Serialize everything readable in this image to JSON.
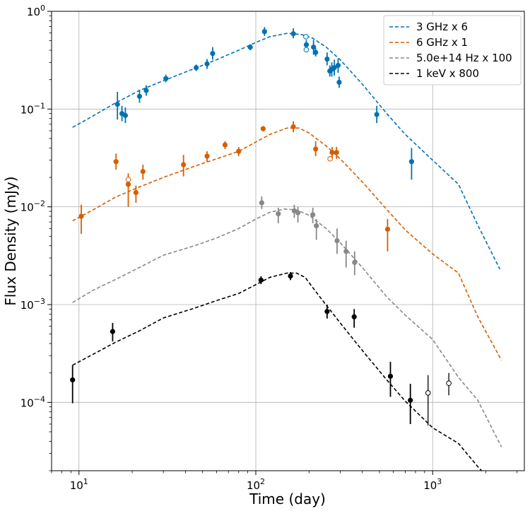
{
  "chart_data": {
    "type": "scatter",
    "xlabel": "Time (day)",
    "ylabel": "Flux Density (mJy)",
    "xscale": "log",
    "yscale": "log",
    "xlim": [
      7,
      3300
    ],
    "ylim": [
      2e-05,
      1
    ],
    "grid": true,
    "legend_position": "top-right",
    "x_ticks": [
      {
        "value": 10,
        "base": "10",
        "exp": "1"
      },
      {
        "value": 100,
        "base": "10",
        "exp": "2"
      },
      {
        "value": 1000,
        "base": "10",
        "exp": "3"
      }
    ],
    "y_ticks": [
      {
        "value": 0.0001,
        "base": "10",
        "exp": "−4"
      },
      {
        "value": 0.001,
        "base": "10",
        "exp": "−3"
      },
      {
        "value": 0.01,
        "base": "10",
        "exp": "−2"
      },
      {
        "value": 0.1,
        "base": "10",
        "exp": "−1"
      },
      {
        "value": 1,
        "base": "10",
        "exp": "0"
      }
    ],
    "series": [
      {
        "name": "3 GHz x 6",
        "color": "#0072b2",
        "model": [
          [
            9.2,
            0.065
          ],
          [
            12,
            0.085
          ],
          [
            16,
            0.115
          ],
          [
            22,
            0.155
          ],
          [
            30,
            0.195
          ],
          [
            45,
            0.26
          ],
          [
            60,
            0.32
          ],
          [
            80,
            0.4
          ],
          [
            100,
            0.48
          ],
          [
            120,
            0.55
          ],
          [
            150,
            0.595
          ],
          [
            180,
            0.58
          ],
          [
            210,
            0.53
          ],
          [
            250,
            0.43
          ],
          [
            300,
            0.32
          ],
          [
            400,
            0.18
          ],
          [
            550,
            0.09
          ],
          [
            700,
            0.055
          ],
          [
            1000,
            0.03
          ],
          [
            1400,
            0.017
          ],
          [
            1800,
            0.0065
          ],
          [
            2400,
            0.0023
          ]
        ],
        "points": [
          [
            16.5,
            0.112,
            0.15,
            0.078
          ],
          [
            17.5,
            0.09,
            0.108,
            0.075
          ],
          [
            18.3,
            0.086,
            0.104,
            0.072
          ],
          [
            22,
            0.135,
            0.158,
            0.116
          ],
          [
            24,
            0.155,
            0.175,
            0.137
          ],
          [
            31,
            0.205,
            0.225,
            0.188
          ],
          [
            46,
            0.265,
            0.285,
            0.245
          ],
          [
            53,
            0.29,
            0.325,
            0.258
          ],
          [
            57,
            0.37,
            0.43,
            0.32
          ],
          [
            93,
            0.43,
            0.46,
            0.4
          ],
          [
            112,
            0.62,
            0.69,
            0.56
          ],
          [
            163,
            0.59,
            0.67,
            0.53
          ],
          [
            193,
            0.455,
            0.51,
            0.405
          ],
          [
            212,
            0.43,
            0.51,
            0.36
          ],
          [
            218,
            0.38,
            0.42,
            0.345
          ],
          [
            253,
            0.325,
            0.38,
            0.28
          ],
          [
            262,
            0.245,
            0.28,
            0.215
          ],
          [
            269,
            0.255,
            0.3,
            0.215
          ],
          [
            278,
            0.265,
            0.32,
            0.22
          ],
          [
            292,
            0.28,
            0.33,
            0.235
          ],
          [
            296,
            0.188,
            0.215,
            0.165
          ],
          [
            483,
            0.088,
            0.108,
            0.072
          ],
          [
            760,
            0.029,
            0.04,
            0.019
          ]
        ],
        "open_points": [
          [
            192,
            0.55
          ],
          [
            193,
            0.405
          ]
        ]
      },
      {
        "name": "6 GHz x 1",
        "color": "#d55e00",
        "model": [
          [
            9.2,
            0.0072
          ],
          [
            12,
            0.0093
          ],
          [
            16,
            0.0125
          ],
          [
            22,
            0.016
          ],
          [
            30,
            0.02
          ],
          [
            45,
            0.026
          ],
          [
            60,
            0.031
          ],
          [
            80,
            0.037
          ],
          [
            100,
            0.046
          ],
          [
            120,
            0.055
          ],
          [
            150,
            0.064
          ],
          [
            175,
            0.064
          ],
          [
            200,
            0.057
          ],
          [
            250,
            0.042
          ],
          [
            300,
            0.031
          ],
          [
            400,
            0.018
          ],
          [
            550,
            0.0094
          ],
          [
            700,
            0.0058
          ],
          [
            1000,
            0.0033
          ],
          [
            1400,
            0.0021
          ],
          [
            1800,
            0.00075
          ],
          [
            2450,
            0.00027
          ]
        ],
        "points": [
          [
            10.3,
            0.008,
            0.0105,
            0.0053
          ],
          [
            16.2,
            0.029,
            0.035,
            0.024
          ],
          [
            19,
            0.017,
            0.022,
            0.01
          ],
          [
            21,
            0.014,
            0.0165,
            0.011
          ],
          [
            23,
            0.023,
            0.027,
            0.019
          ],
          [
            39,
            0.027,
            0.034,
            0.0205
          ],
          [
            53,
            0.033,
            0.037,
            0.029
          ],
          [
            67,
            0.043,
            0.047,
            0.039
          ],
          [
            80,
            0.037,
            0.041,
            0.033
          ],
          [
            110,
            0.063,
            0.067,
            0.059
          ],
          [
            163,
            0.066,
            0.075,
            0.058
          ],
          [
            218,
            0.039,
            0.047,
            0.033
          ],
          [
            270,
            0.036,
            0.041,
            0.031
          ],
          [
            286,
            0.036,
            0.041,
            0.031
          ],
          [
            556,
            0.0059,
            0.0075,
            0.0035
          ]
        ],
        "open_points": [
          [
            19,
            0.019
          ],
          [
            263,
            0.031
          ]
        ]
      },
      {
        "name": "5.0e+14 Hz x 100",
        "color": "#888888",
        "model": [
          [
            9.2,
            0.00105
          ],
          [
            12,
            0.0014
          ],
          [
            16,
            0.0018
          ],
          [
            22,
            0.0024
          ],
          [
            30,
            0.0032
          ],
          [
            45,
            0.004
          ],
          [
            60,
            0.0048
          ],
          [
            80,
            0.006
          ],
          [
            100,
            0.0075
          ],
          [
            120,
            0.0088
          ],
          [
            145,
            0.0095
          ],
          [
            170,
            0.0093
          ],
          [
            200,
            0.0082
          ],
          [
            250,
            0.006
          ],
          [
            300,
            0.0043
          ],
          [
            400,
            0.0024
          ],
          [
            550,
            0.0012
          ],
          [
            700,
            0.00078
          ],
          [
            1000,
            0.00044
          ],
          [
            1400,
            0.00018
          ],
          [
            1800,
            0.000105
          ],
          [
            2450,
            3.5e-05
          ]
        ],
        "points": [
          [
            108,
            0.011,
            0.0128,
            0.0095
          ],
          [
            134,
            0.0085,
            0.0098,
            0.0068
          ],
          [
            165,
            0.0091,
            0.0105,
            0.0077
          ],
          [
            173,
            0.0087,
            0.01,
            0.0069
          ],
          [
            210,
            0.0083,
            0.0098,
            0.0068
          ],
          [
            220,
            0.0064,
            0.0075,
            0.0046
          ],
          [
            288,
            0.0045,
            0.006,
            0.0033
          ],
          [
            324,
            0.0035,
            0.0045,
            0.0024
          ],
          [
            362,
            0.0027,
            0.0035,
            0.002
          ]
        ],
        "open_points": []
      },
      {
        "name": "1 keV x 800",
        "color": "#000000",
        "model": [
          [
            9.2,
            0.00024
          ],
          [
            12,
            0.00031
          ],
          [
            16,
            0.00041
          ],
          [
            22,
            0.00054
          ],
          [
            30,
            0.00073
          ],
          [
            45,
            0.00092
          ],
          [
            60,
            0.0011
          ],
          [
            80,
            0.0013
          ],
          [
            100,
            0.0016
          ],
          [
            120,
            0.0019
          ],
          [
            150,
            0.0021
          ],
          [
            170,
            0.0021
          ],
          [
            190,
            0.0019
          ],
          [
            230,
            0.0012
          ],
          [
            300,
            0.00065
          ],
          [
            400,
            0.00034
          ],
          [
            550,
            0.00017
          ],
          [
            700,
            0.000103
          ],
          [
            1000,
            5.5e-05
          ],
          [
            1400,
            3.8e-05
          ],
          [
            1800,
            2.2e-05
          ],
          [
            2000,
            1.8e-05
          ]
        ],
        "points": [
          [
            9.2,
            0.00017,
            0.00024,
            9.8e-05
          ],
          [
            15.5,
            0.00053,
            0.00065,
            0.00042
          ],
          [
            107,
            0.00178,
            0.00195,
            0.00162
          ],
          [
            157,
            0.00196,
            0.00215,
            0.00178
          ],
          [
            253,
            0.00085,
            0.001,
            0.00072
          ],
          [
            360,
            0.00075,
            0.0009,
            0.00058
          ],
          [
            577,
            0.000185,
            0.00026,
            0.000114
          ],
          [
            748,
            0.000105,
            0.000155,
            6e-05
          ]
        ],
        "open_points": [
          [
            942,
            0.000125,
            0.00019,
            5.8e-05
          ],
          [
            1234,
            0.000157,
            0.0002,
            0.000118
          ]
        ]
      }
    ]
  }
}
